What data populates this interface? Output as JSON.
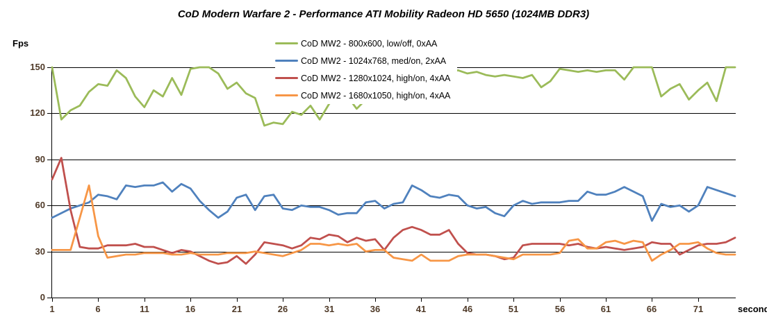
{
  "chart_data": {
    "type": "line",
    "title": "CoD Modern Warfare 2 - Performance ATI Mobility Radeon HD 5650 (1024MB DDR3)",
    "xlabel": "seconds",
    "ylabel": "Fps",
    "ylim": [
      0,
      150
    ],
    "yticks": [
      0,
      30,
      60,
      90,
      120,
      150
    ],
    "xticks": [
      1,
      6,
      11,
      16,
      21,
      26,
      31,
      36,
      41,
      46,
      51,
      56,
      61,
      66,
      71
    ],
    "x_range_seconds": [
      1,
      75
    ],
    "grid": "horizontal-on",
    "legend_position": "top-center-overlay",
    "series": [
      {
        "name": "CoD MW2 - 800x600, low/off, 0xAA",
        "color": "#9BBB59",
        "values": [
          150,
          116,
          122,
          125,
          134,
          139,
          138,
          148,
          143,
          131,
          124,
          135,
          131,
          143,
          132,
          149,
          150,
          150,
          146,
          136,
          140,
          133,
          130,
          112,
          114,
          113,
          121,
          119,
          125,
          116,
          126,
          133,
          131,
          123,
          129,
          132,
          135,
          133,
          137,
          140,
          143,
          139,
          144,
          147,
          148,
          146,
          147,
          145,
          144,
          145,
          144,
          143,
          145,
          137,
          141,
          149,
          148,
          147,
          148,
          147,
          148,
          148,
          142,
          150,
          150,
          150,
          131,
          136,
          139,
          129,
          135,
          140,
          128,
          150,
          150
        ]
      },
      {
        "name": "CoD MW2 - 1024x768,  med/on, 2xAA",
        "color": "#4F81BD",
        "values": [
          52,
          55,
          58,
          60,
          62,
          67,
          66,
          64,
          73,
          72,
          73,
          73,
          75,
          69,
          74,
          71,
          63,
          57,
          52,
          56,
          65,
          67,
          57,
          66,
          67,
          58,
          57,
          60,
          59,
          59,
          57,
          54,
          55,
          55,
          62,
          63,
          58,
          61,
          62,
          73,
          70,
          66,
          65,
          67,
          66,
          60,
          58,
          59,
          55,
          53,
          60,
          63,
          61,
          62,
          62,
          62,
          63,
          63,
          69,
          67,
          67,
          69,
          72,
          69,
          66,
          50,
          61,
          59,
          60,
          56,
          60,
          72,
          70,
          68,
          66
        ]
      },
      {
        "name": "CoD MW2 - 1280x1024,  high/on, 4xAA",
        "color": "#C0504D",
        "values": [
          77,
          91,
          57,
          33,
          32,
          32,
          34,
          34,
          34,
          35,
          33,
          33,
          31,
          29,
          31,
          30,
          27,
          24,
          22,
          23,
          27,
          22,
          28,
          36,
          35,
          34,
          32,
          34,
          39,
          38,
          41,
          40,
          36,
          39,
          37,
          38,
          31,
          39,
          44,
          46,
          44,
          41,
          41,
          44,
          35,
          29,
          28,
          28,
          27,
          25,
          26,
          34,
          35,
          35,
          35,
          35,
          34,
          35,
          33,
          32,
          33,
          32,
          31,
          32,
          33,
          36,
          35,
          35,
          28,
          31,
          34,
          35,
          35,
          36,
          39
        ]
      },
      {
        "name": "CoD MW2 - 1680x1050,  high/on, 4xAA",
        "color": "#F79646",
        "values": [
          31,
          31,
          31,
          52,
          73,
          40,
          26,
          27,
          28,
          28,
          29,
          29,
          29,
          28,
          28,
          29,
          28,
          28,
          28,
          29,
          29,
          29,
          30,
          29,
          28,
          27,
          29,
          31,
          35,
          35,
          34,
          35,
          34,
          35,
          30,
          31,
          31,
          26,
          25,
          24,
          28,
          24,
          24,
          24,
          27,
          28,
          28,
          28,
          27,
          26,
          25,
          28,
          28,
          28,
          28,
          29,
          37,
          38,
          32,
          32,
          36,
          37,
          35,
          37,
          36,
          24,
          28,
          31,
          35,
          35,
          36,
          32,
          29,
          28,
          28
        ]
      }
    ]
  },
  "colors": {
    "grid": "#000000",
    "axis": "#000000",
    "tick_label": "#4F3A28",
    "title_text": "#000000",
    "background": "#FFFFFF"
  }
}
